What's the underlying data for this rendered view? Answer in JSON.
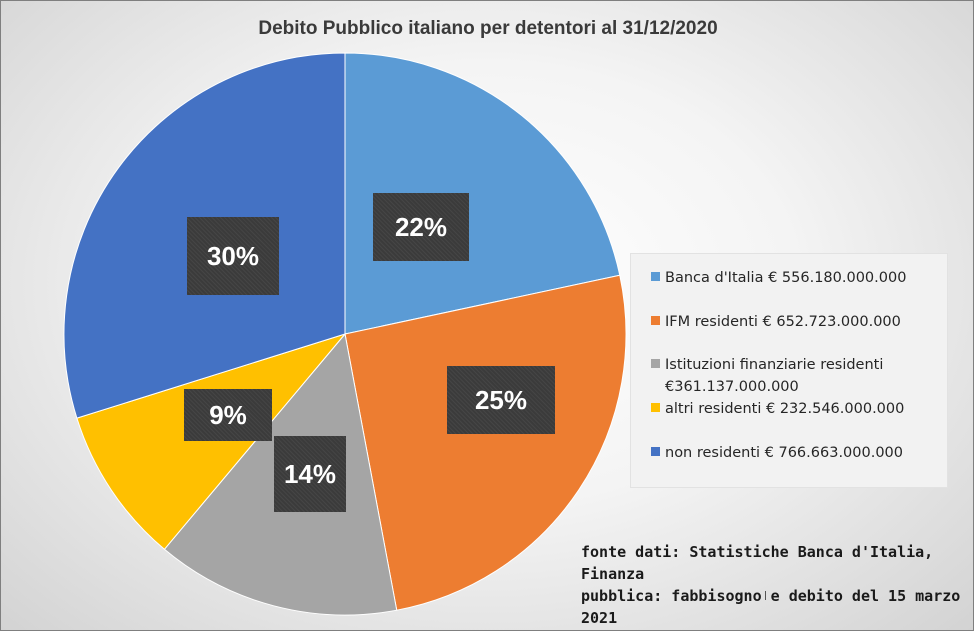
{
  "chart_data": {
    "type": "pie",
    "title": "Debito Pubblico italiano per detentori al 31/12/2020",
    "slices": [
      {
        "name": "Banca d'Italia € 556.180.000.000",
        "value": 556180000000,
        "percent_label": "22%",
        "color": "#5b9bd5"
      },
      {
        "name": "IFM residenti € 652.723.000.000",
        "value": 652723000000,
        "percent_label": "25%",
        "color": "#ed7d31"
      },
      {
        "name": "Istituzioni finanziarie residenti",
        "name_line2": "€361.137.000.000",
        "value": 361137000000,
        "percent_label": "14%",
        "color": "#a5a5a5"
      },
      {
        "name": "altri residenti € 232.546.000.000",
        "value": 232546000000,
        "percent_label": "9%",
        "color": "#ffc000"
      },
      {
        "name": "non residenti € 766.663.000.000",
        "value": 766663000000,
        "percent_label": "30%",
        "color": "#4472c4"
      }
    ],
    "legend_position": "right"
  },
  "source_note": {
    "line1": "fonte dati: Statistiche Banca d'Italia, Finanza",
    "line2": "pubblica: fabbisogno e debito del 15 marzo 2021"
  }
}
